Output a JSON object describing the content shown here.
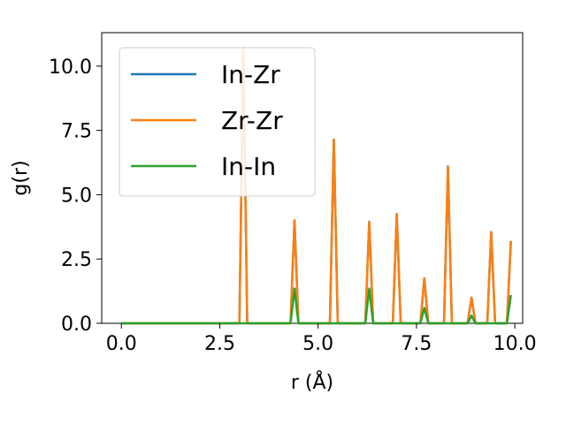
{
  "chart_data": {
    "type": "line",
    "xlabel": "r (Å)",
    "ylabel": "g(r)",
    "xlim": [
      -0.5,
      10.2
    ],
    "ylim": [
      0,
      11.3
    ],
    "xticks": [
      0.0,
      2.5,
      5.0,
      7.5,
      10.0
    ],
    "xtick_labels": [
      "0.0",
      "2.5",
      "5.0",
      "7.5",
      "10.0"
    ],
    "yticks": [
      0.0,
      2.5,
      5.0,
      7.5,
      10.0
    ],
    "ytick_labels": [
      "0.0",
      "2.5",
      "5.0",
      "7.5",
      "10.0"
    ],
    "grid": false,
    "legend_position": "upper-left",
    "x": [
      0.0,
      0.1,
      0.2,
      0.3,
      0.4,
      0.5,
      0.6,
      0.7,
      0.8,
      0.9,
      1.0,
      1.1,
      1.2,
      1.3,
      1.4,
      1.5,
      1.6,
      1.7,
      1.8,
      1.9,
      2.0,
      2.1,
      2.2,
      2.3,
      2.4,
      2.5,
      2.6,
      2.7,
      2.8,
      2.9,
      3.0,
      3.1,
      3.2,
      3.3,
      3.4,
      3.5,
      3.6,
      3.7,
      3.8,
      3.9,
      4.0,
      4.1,
      4.2,
      4.3,
      4.4,
      4.5,
      4.6,
      4.7,
      4.8,
      4.9,
      5.0,
      5.1,
      5.2,
      5.3,
      5.4,
      5.5,
      5.6,
      5.7,
      5.8,
      5.9,
      6.0,
      6.1,
      6.2,
      6.3,
      6.4,
      6.5,
      6.6,
      6.7,
      6.8,
      6.9,
      7.0,
      7.1,
      7.2,
      7.3,
      7.4,
      7.5,
      7.6,
      7.7,
      7.8,
      7.9,
      8.0,
      8.1,
      8.2,
      8.3,
      8.4,
      8.5,
      8.6,
      8.7,
      8.8,
      8.9,
      9.0,
      9.1,
      9.2,
      9.3,
      9.4,
      9.5,
      9.6,
      9.7,
      9.8,
      9.9
    ],
    "series": [
      {
        "name": "In-Zr",
        "color": "#1f77b4",
        "values": [
          0,
          0,
          0,
          0,
          0,
          0,
          0,
          0,
          0,
          0,
          0,
          0,
          0,
          0,
          0,
          0,
          0,
          0,
          0,
          0,
          0,
          0,
          0,
          0,
          0,
          0,
          0,
          0,
          0,
          0,
          0,
          10.7,
          0,
          0,
          0,
          0,
          0,
          0,
          0,
          0,
          0,
          0,
          0,
          0,
          4.0,
          0,
          0,
          0,
          0,
          0,
          0,
          0,
          0,
          0,
          7.15,
          0,
          0,
          0,
          0,
          0,
          0,
          0,
          0,
          3.95,
          0,
          0,
          0,
          0,
          0,
          0,
          4.25,
          0,
          0,
          0,
          0,
          0,
          0,
          1.75,
          0,
          0,
          0,
          0,
          0,
          6.1,
          0,
          0,
          0,
          0,
          0,
          1.0,
          0,
          0,
          0,
          0,
          3.55,
          0,
          0,
          0,
          0,
          3.2
        ]
      },
      {
        "name": "Zr-Zr",
        "color": "#ff7f0e",
        "values": [
          0,
          0,
          0,
          0,
          0,
          0,
          0,
          0,
          0,
          0,
          0,
          0,
          0,
          0,
          0,
          0,
          0,
          0,
          0,
          0,
          0,
          0,
          0,
          0,
          0,
          0,
          0,
          0,
          0,
          0,
          0,
          10.7,
          0,
          0,
          0,
          0,
          0,
          0,
          0,
          0,
          0,
          0,
          0,
          0,
          4.0,
          0,
          0,
          0,
          0,
          0,
          0,
          0,
          0,
          0,
          7.15,
          0,
          0,
          0,
          0,
          0,
          0,
          0,
          0,
          3.95,
          0,
          0,
          0,
          0,
          0,
          0,
          4.25,
          0,
          0,
          0,
          0,
          0,
          0,
          1.75,
          0,
          0,
          0,
          0,
          0,
          6.1,
          0,
          0,
          0,
          0,
          0,
          1.0,
          0,
          0,
          0,
          0,
          3.55,
          0,
          0,
          0,
          0,
          3.2
        ]
      },
      {
        "name": "In-In",
        "color": "#2ca02c",
        "values": [
          0,
          0,
          0,
          0,
          0,
          0,
          0,
          0,
          0,
          0,
          0,
          0,
          0,
          0,
          0,
          0,
          0,
          0,
          0,
          0,
          0,
          0,
          0,
          0,
          0,
          0,
          0,
          0,
          0,
          0,
          0,
          0,
          0,
          0,
          0,
          0,
          0,
          0,
          0,
          0,
          0,
          0,
          0,
          0,
          1.35,
          0,
          0,
          0,
          0,
          0,
          0,
          0,
          0,
          0,
          0,
          0,
          0,
          0,
          0,
          0,
          0,
          0,
          0,
          1.35,
          0,
          0,
          0,
          0,
          0,
          0,
          0,
          0,
          0,
          0,
          0,
          0,
          0,
          0.6,
          0,
          0,
          0,
          0,
          0,
          0,
          0,
          0,
          0,
          0,
          0,
          0.3,
          0,
          0,
          0,
          0,
          0,
          0,
          0,
          0,
          0,
          1.1
        ]
      }
    ]
  }
}
